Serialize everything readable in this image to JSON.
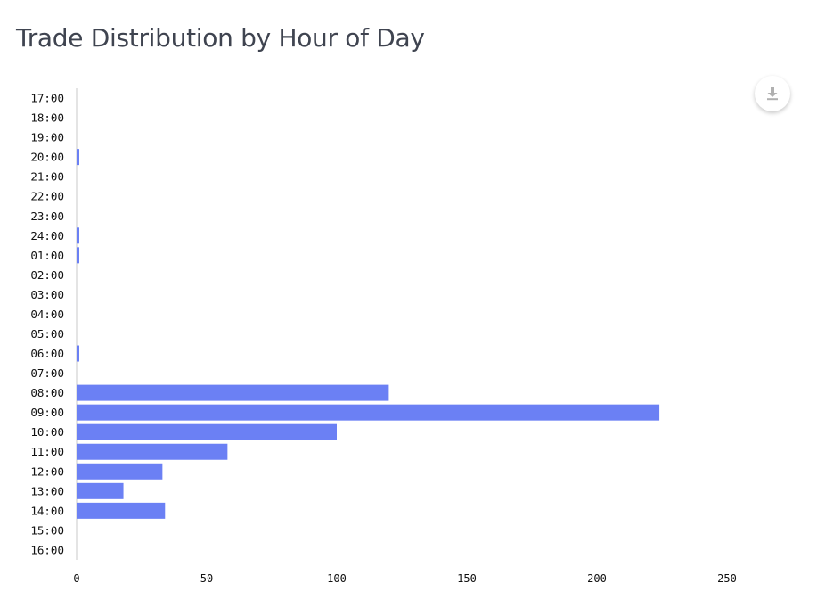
{
  "title": "Trade Distribution by Hour of Day",
  "toolbar": {
    "download_icon": "download-icon"
  },
  "colors": {
    "bar": "#6b80f4",
    "axis": "#c8c8c8",
    "title": "#3f4450"
  },
  "chart_data": {
    "type": "bar",
    "orientation": "horizontal",
    "title": "Trade Distribution by Hour of Day",
    "xlabel": "",
    "ylabel": "",
    "xlim": [
      0,
      250
    ],
    "xticks": [
      0,
      50,
      100,
      150,
      200,
      250
    ],
    "grid": false,
    "categories": [
      "17:00",
      "18:00",
      "19:00",
      "20:00",
      "21:00",
      "22:00",
      "23:00",
      "24:00",
      "01:00",
      "02:00",
      "03:00",
      "04:00",
      "05:00",
      "06:00",
      "07:00",
      "08:00",
      "09:00",
      "10:00",
      "11:00",
      "12:00",
      "13:00",
      "14:00",
      "15:00",
      "16:00"
    ],
    "values": [
      0,
      0,
      0,
      1,
      0,
      0,
      0,
      1,
      1,
      0,
      0,
      0,
      0,
      1,
      0,
      120,
      224,
      100,
      58,
      33,
      18,
      34,
      0,
      0
    ]
  }
}
